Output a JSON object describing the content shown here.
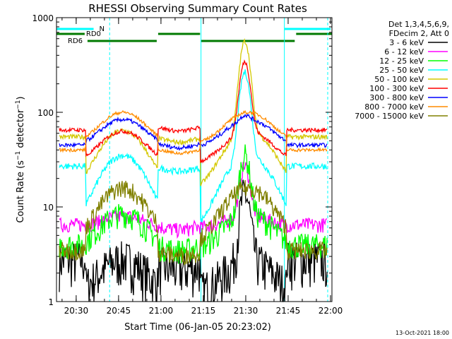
{
  "chart_data": {
    "type": "line",
    "title": "RHESSI Observing Summary Count Rates",
    "xlabel": "Start Time (06-Jan-05 20:23:02)",
    "ylabel": "Count Rate (s⁻¹ detector⁻¹)",
    "ylabel_main": "Count Rate (s",
    "ylabel_sup1": "−1",
    "ylabel_mid": " detector",
    "ylabel_sup2": "−1",
    "ylabel_end": ")",
    "y_scale": "log",
    "ylim": [
      1,
      1000
    ],
    "y_ticks": [
      {
        "value": 1,
        "label": "1"
      },
      {
        "value": 10,
        "label": "10"
      },
      {
        "value": 100,
        "label": "100"
      },
      {
        "value": 1000,
        "label": "1000"
      }
    ],
    "xlim": [
      "20:23:02",
      "22:00:30"
    ],
    "x_ticks": [
      {
        "time": "20:30",
        "label": "20:30"
      },
      {
        "time": "20:45",
        "label": "20:45"
      },
      {
        "time": "21:00",
        "label": "21:00"
      },
      {
        "time": "21:15",
        "label": "21:15"
      },
      {
        "time": "21:30",
        "label": "21:30"
      },
      {
        "time": "21:45",
        "label": "21:45"
      },
      {
        "time": "22:00",
        "label": "22:00"
      }
    ],
    "legend_header": [
      "Det 1,3,4,5,6,9,",
      "FDecim 2, Att 0"
    ],
    "legend_placement": "right",
    "series": [
      {
        "name": "3 - 6 keV",
        "color": "#000000",
        "flare_peak": 11,
        "base": 2.5
      },
      {
        "name": "6 - 12 keV",
        "color": "#ff00ff",
        "flare_peak": 19,
        "base": 6.5
      },
      {
        "name": "12 - 25 keV",
        "color": "#00ff00",
        "flare_peak": 27,
        "base": 4
      },
      {
        "name": "25 - 50 keV",
        "color": "#00ffff",
        "flare_peak": 230,
        "base": 27
      },
      {
        "name": "50 - 100 keV",
        "color": "#d4c800",
        "flare_peak": 500,
        "base": 55
      },
      {
        "name": "100 - 300 keV",
        "color": "#ff0000",
        "flare_peak": 280,
        "base": 65
      },
      {
        "name": "300 - 800 keV",
        "color": "#0000ff",
        "flare_peak": 85,
        "base": 45
      },
      {
        "name": "800 - 7000 keV",
        "color": "#ff8c00",
        "flare_peak": 100,
        "base": 40
      },
      {
        "name": "7000 - 15000 keV",
        "color": "#808000",
        "flare_peak": 16,
        "base": 3.5
      }
    ],
    "annotations": {
      "night": [
        {
          "start": "20:23:02",
          "end": "20:36:10"
        },
        {
          "start": "21:43:40",
          "end": "22:00:00"
        }
      ],
      "N_label": "N",
      "saa": [
        {
          "start": "20:41:50",
          "end": "20:46:00"
        },
        {
          "start": "21:10:00",
          "end": "21:15:00"
        }
      ],
      "RD0_label": "RD0",
      "RD0": [
        {
          "start": "20:23:02",
          "end": "20:33:00"
        },
        {
          "start": "20:59:00",
          "end": "21:13:50"
        },
        {
          "start": "21:47:50",
          "end": "22:00:30"
        }
      ],
      "RD6_label": "RD6",
      "RD6": [
        {
          "start": "20:34:00",
          "end": "20:58:30"
        },
        {
          "start": "21:14:00",
          "end": "21:47:20"
        }
      ],
      "vertical_lines": [
        "20:23:02",
        "20:41:50",
        "21:14:10",
        "21:43:40",
        "21:59:00"
      ]
    },
    "grid": false,
    "footer": "13-Oct-2021 18:00"
  }
}
